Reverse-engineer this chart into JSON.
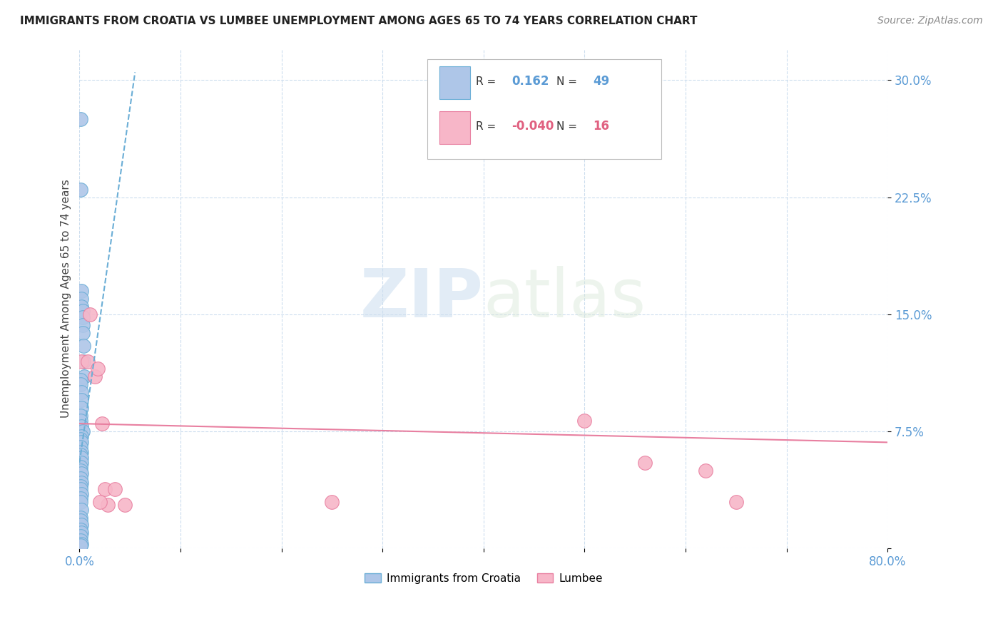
{
  "title": "IMMIGRANTS FROM CROATIA VS LUMBEE UNEMPLOYMENT AMONG AGES 65 TO 74 YEARS CORRELATION CHART",
  "source": "Source: ZipAtlas.com",
  "ylabel": "Unemployment Among Ages 65 to 74 years",
  "xlim": [
    0,
    0.8
  ],
  "ylim": [
    0,
    0.32
  ],
  "legend_r_blue": "0.162",
  "legend_n_blue": "49",
  "legend_r_pink": "-0.040",
  "legend_n_pink": "16",
  "blue_color": "#aec6e8",
  "blue_edge_color": "#6baed6",
  "pink_color": "#f7b6c8",
  "pink_edge_color": "#e87fa0",
  "trend_blue_color": "#6baed6",
  "trend_pink_color": "#e87fa0",
  "watermark_zip": "ZIP",
  "watermark_atlas": "atlas",
  "blue_scatter_x": [
    0.001,
    0.001,
    0.002,
    0.002,
    0.002,
    0.003,
    0.003,
    0.003,
    0.003,
    0.004,
    0.004,
    0.005,
    0.001,
    0.001,
    0.002,
    0.002,
    0.002,
    0.001,
    0.001,
    0.002,
    0.003,
    0.002,
    0.001,
    0.002,
    0.001,
    0.002,
    0.001,
    0.002,
    0.002,
    0.001,
    0.001,
    0.002,
    0.001,
    0.002,
    0.001,
    0.001,
    0.002,
    0.001,
    0.001,
    0.002,
    0.001,
    0.001,
    0.002,
    0.001,
    0.002,
    0.001,
    0.001,
    0.002,
    0.001
  ],
  "blue_scatter_y": [
    0.275,
    0.23,
    0.165,
    0.16,
    0.155,
    0.152,
    0.148,
    0.143,
    0.138,
    0.13,
    0.12,
    0.11,
    0.108,
    0.105,
    0.1,
    0.095,
    0.09,
    0.085,
    0.082,
    0.078,
    0.075,
    0.072,
    0.07,
    0.068,
    0.065,
    0.062,
    0.06,
    0.058,
    0.055,
    0.052,
    0.05,
    0.048,
    0.045,
    0.042,
    0.04,
    0.038,
    0.035,
    0.032,
    0.03,
    0.025,
    0.02,
    0.018,
    0.015,
    0.012,
    0.01,
    0.008,
    0.005,
    0.003,
    0.002
  ],
  "pink_scatter_x": [
    0.002,
    0.008,
    0.01,
    0.015,
    0.018,
    0.022,
    0.025,
    0.028,
    0.035,
    0.045,
    0.5,
    0.56,
    0.62,
    0.65,
    0.25,
    0.02
  ],
  "pink_scatter_y": [
    0.12,
    0.12,
    0.15,
    0.11,
    0.115,
    0.08,
    0.038,
    0.028,
    0.038,
    0.028,
    0.082,
    0.055,
    0.05,
    0.03,
    0.03,
    0.03
  ],
  "blue_trend_x": [
    0.0,
    0.055
  ],
  "blue_trend_y": [
    0.055,
    0.305
  ],
  "pink_trend_x": [
    0.0,
    0.8
  ],
  "pink_trend_y": [
    0.08,
    0.068
  ]
}
